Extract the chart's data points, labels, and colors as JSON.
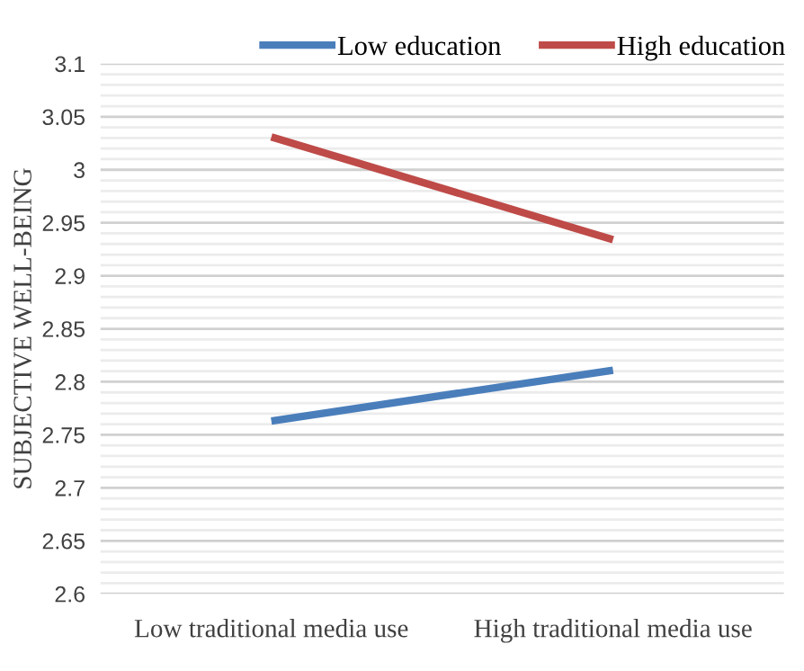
{
  "chart_data": {
    "type": "line",
    "ylabel": "SUBJECTIVE WELL-BEING",
    "categories": [
      "Low traditional media use",
      "High traditional media use"
    ],
    "series": [
      {
        "name": "Low education",
        "color": "#4a7ebb",
        "values": [
          2.763,
          2.811
        ]
      },
      {
        "name": "High education",
        "color": "#be4b48",
        "values": [
          3.031,
          2.934
        ]
      }
    ],
    "ylim": [
      2.6,
      3.1
    ],
    "yticks": [
      2.6,
      {
        "value": 2.61,
        "label": null
      },
      {
        "value": 2.62,
        "label": null
      },
      {
        "value": 2.63,
        "label": null
      },
      {
        "value": 2.64,
        "label": null
      },
      2.65,
      {
        "value": 2.66,
        "label": null
      },
      {
        "value": 2.67,
        "label": null
      },
      {
        "value": 2.68,
        "label": null
      },
      {
        "value": 2.69,
        "label": null
      },
      2.7,
      {
        "value": 2.71,
        "label": null
      },
      {
        "value": 2.72,
        "label": null
      },
      {
        "value": 2.73,
        "label": null
      },
      {
        "value": 2.74,
        "label": null
      },
      2.75,
      {
        "value": 2.76,
        "label": null
      },
      {
        "value": 2.77,
        "label": null
      },
      {
        "value": 2.78,
        "label": null
      },
      {
        "value": 2.79,
        "label": null
      },
      2.8,
      {
        "value": 2.81,
        "label": null
      },
      {
        "value": 2.82,
        "label": null
      },
      {
        "value": 2.83,
        "label": null
      },
      {
        "value": 2.84,
        "label": null
      },
      2.85,
      {
        "value": 2.86,
        "label": null
      },
      {
        "value": 2.87,
        "label": null
      },
      {
        "value": 2.88,
        "label": null
      },
      {
        "value": 2.89,
        "label": null
      },
      2.9,
      {
        "value": 2.91,
        "label": null
      },
      {
        "value": 2.92,
        "label": null
      },
      {
        "value": 2.93,
        "label": null
      },
      {
        "value": 2.94,
        "label": null
      },
      2.95,
      {
        "value": 2.96,
        "label": null
      },
      {
        "value": 2.97,
        "label": null
      },
      {
        "value": 2.98,
        "label": null
      },
      {
        "value": 2.99,
        "label": null
      },
      3,
      {
        "value": 3.01,
        "label": null
      },
      {
        "value": 3.02,
        "label": null
      },
      {
        "value": 3.03,
        "label": null
      },
      {
        "value": 3.04,
        "label": null
      },
      3.05,
      {
        "value": 3.06,
        "label": null
      },
      {
        "value": 3.07,
        "label": null
      },
      {
        "value": 3.08,
        "label": null
      },
      {
        "value": 3.09,
        "label": null
      },
      3.1
    ],
    "grid": "y",
    "legend": "top",
    "marker": "none",
    "line_style": "solid"
  }
}
